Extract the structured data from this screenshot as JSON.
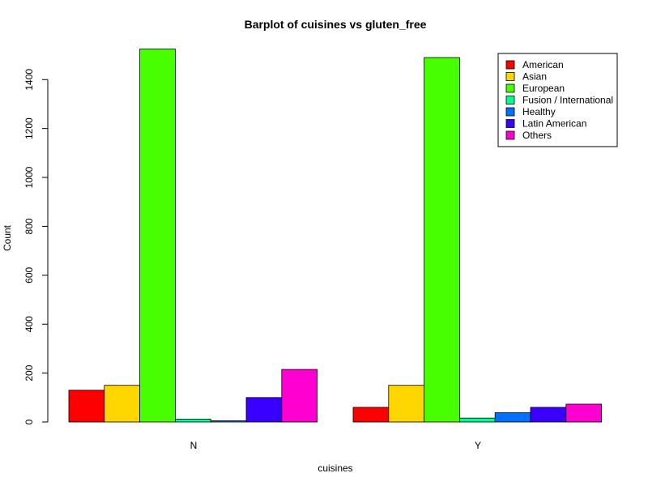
{
  "chart_data": {
    "type": "bar",
    "layout": "grouped",
    "title": "Barplot of cuisines vs gluten_free",
    "xlabel": "cuisines",
    "ylabel": "Count",
    "ylim": [
      0,
      1530
    ],
    "yticks": [
      0,
      200,
      400,
      600,
      800,
      1000,
      1200,
      1400
    ],
    "y_tick_labels": [
      "0",
      "200",
      "400",
      "600",
      "800",
      "1000",
      "1200",
      "1400"
    ],
    "categories": [
      "N",
      "Y"
    ],
    "legend_position": "top-right",
    "grid": false,
    "series": [
      {
        "name": "American",
        "color": "#FF0000",
        "values": [
          130,
          60
        ]
      },
      {
        "name": "Asian",
        "color": "#FFD700",
        "values": [
          150,
          150
        ]
      },
      {
        "name": "European",
        "color": "#48FF00",
        "values": [
          1525,
          1490
        ]
      },
      {
        "name": "Fusion / International",
        "color": "#00FF91",
        "values": [
          12,
          16
        ]
      },
      {
        "name": "Healthy",
        "color": "#0070FF",
        "values": [
          5,
          38
        ]
      },
      {
        "name": "Latin American",
        "color": "#3A00FF",
        "values": [
          100,
          60
        ]
      },
      {
        "name": "Others",
        "color": "#FF00D0",
        "values": [
          215,
          73
        ]
      }
    ]
  }
}
